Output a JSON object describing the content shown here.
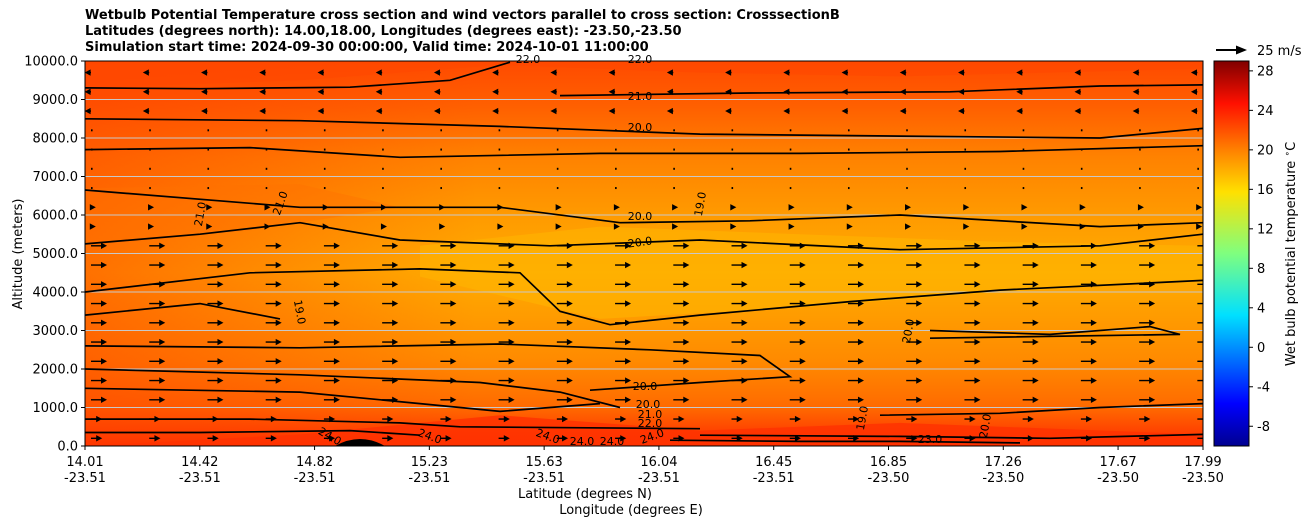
{
  "title_lines": [
    "Wetbulb Potential Temperature cross section and wind vectors parallel to cross section: CrosssectionB",
    "Latitudes (degrees north): 14.00,18.00, Longitudes (degrees east): -23.50,-23.50",
    "Simulation start time: 2024-09-30 00:00:00, Valid time: 2024-10-01 11:00:00"
  ],
  "chart_data": {
    "type": "heatmap",
    "ylabel": "Altitude (meters)",
    "xlabel_lat": "Latitude (degrees N)",
    "xlabel_lon": "Longitude (degrees E)",
    "ylim": [
      0,
      10000
    ],
    "xlim": [
      14.01,
      17.99
    ],
    "y_ticks": [
      "0.0",
      "1000.0",
      "2000.0",
      "3000.0",
      "4000.0",
      "5000.0",
      "6000.0",
      "7000.0",
      "8000.0",
      "9000.0",
      "10000.0"
    ],
    "x_ticks": [
      {
        "lat": "14.01",
        "lon": "-23.51"
      },
      {
        "lat": "14.42",
        "lon": "-23.51"
      },
      {
        "lat": "14.82",
        "lon": "-23.51"
      },
      {
        "lat": "15.23",
        "lon": "-23.51"
      },
      {
        "lat": "15.63",
        "lon": "-23.51"
      },
      {
        "lat": "16.04",
        "lon": "-23.51"
      },
      {
        "lat": "16.45",
        "lon": "-23.51"
      },
      {
        "lat": "16.85",
        "lon": "-23.50"
      },
      {
        "lat": "17.26",
        "lon": "-23.50"
      },
      {
        "lat": "17.67",
        "lon": "-23.50"
      },
      {
        "lat": "17.99",
        "lon": "-23.50"
      }
    ],
    "grid": "horizontal",
    "colorbar": {
      "label": "Wet bulb potential temperature $^\\circ$C",
      "range": [
        -10,
        29
      ],
      "ticks": [
        "-8",
        "-4",
        "0",
        "4",
        "8",
        "12",
        "16",
        "20",
        "24",
        "28"
      ],
      "colormap": "jet"
    },
    "quiver_key": {
      "label": "25 m/s",
      "speed": 25
    },
    "contour_levels": [
      19.0,
      20.0,
      21.0,
      22.0,
      23.0,
      24.0
    ],
    "contour_labels": [
      "22.0",
      "22.0",
      "21.0",
      "20.0",
      "21.0",
      "21.0",
      "20.0",
      "20.0",
      "19.0",
      "19.0",
      "20.0",
      "20.0",
      "20.0",
      "21.0",
      "22.0",
      "24.0",
      "24.0",
      "24.0",
      "24.0",
      "24.0",
      "24.0",
      "19.0",
      "23.0",
      "20.0"
    ],
    "field_colors": {
      "high": "#ff3a00",
      "mid": "#ff8400",
      "low": "#ffae00"
    }
  }
}
